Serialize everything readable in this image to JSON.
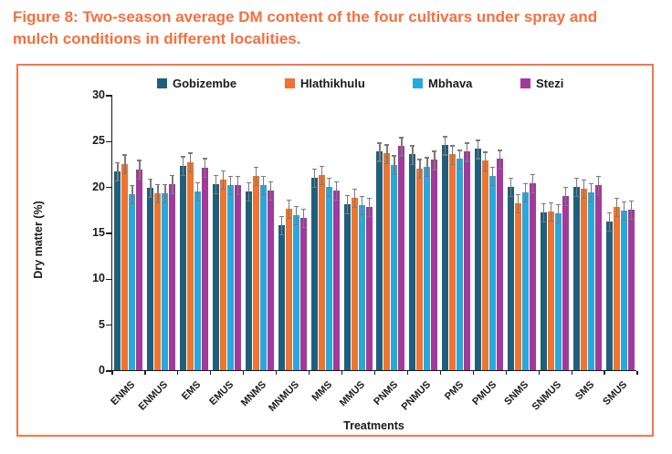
{
  "figure": {
    "title": "Figure 8: Two-season average DM content of the four cultivars under spray and mulch conditions in different localities.",
    "title_color": "#F4703E",
    "frame_border_color": "#F4774B"
  },
  "chart_data": {
    "type": "bar",
    "title": "",
    "xlabel": "Treatments",
    "ylabel": "Dry matter (%)",
    "ylim": [
      0,
      30
    ],
    "yticks": [
      0,
      5,
      10,
      15,
      20,
      25,
      30
    ],
    "grid": false,
    "legend_position": "top",
    "error_bars": {
      "show": true,
      "value": 1.0,
      "color": "#7a7a7a"
    },
    "categories": [
      "ENMS",
      "ENMUS",
      "EMS",
      "EMUS",
      "MNMS",
      "MNMUS",
      "MMS",
      "MMUS",
      "PNMS",
      "PNMUS",
      "PMS",
      "PMUS",
      "SNMS",
      "SNMUS",
      "SMS",
      "SMUS"
    ],
    "series": [
      {
        "name": "Gobizembe",
        "color": "#1F5F7C",
        "values": [
          21.7,
          19.9,
          22.3,
          20.3,
          19.5,
          15.8,
          21.0,
          18.1,
          23.8,
          23.5,
          24.5,
          24.1,
          20.0,
          17.2,
          20.0,
          16.2
        ]
      },
      {
        "name": "Hlathikhulu",
        "color": "#ED7431",
        "values": [
          22.5,
          19.3,
          22.7,
          20.8,
          21.2,
          17.6,
          21.3,
          18.8,
          23.6,
          22.0,
          23.5,
          22.8,
          18.2,
          17.3,
          19.8,
          17.8
        ]
      },
      {
        "name": "Mbhava",
        "color": "#29A8DC",
        "values": [
          19.2,
          19.3,
          19.5,
          20.2,
          20.2,
          16.9,
          20.0,
          18.0,
          22.4,
          22.2,
          23.0,
          21.2,
          19.4,
          17.1,
          19.4,
          17.4
        ]
      },
      {
        "name": "Stezi",
        "color": "#A23A9B",
        "values": [
          21.9,
          20.3,
          22.1,
          20.2,
          19.6,
          16.6,
          19.6,
          17.8,
          24.4,
          22.9,
          23.8,
          23.0,
          20.4,
          19.0,
          20.2,
          17.5
        ]
      }
    ]
  }
}
